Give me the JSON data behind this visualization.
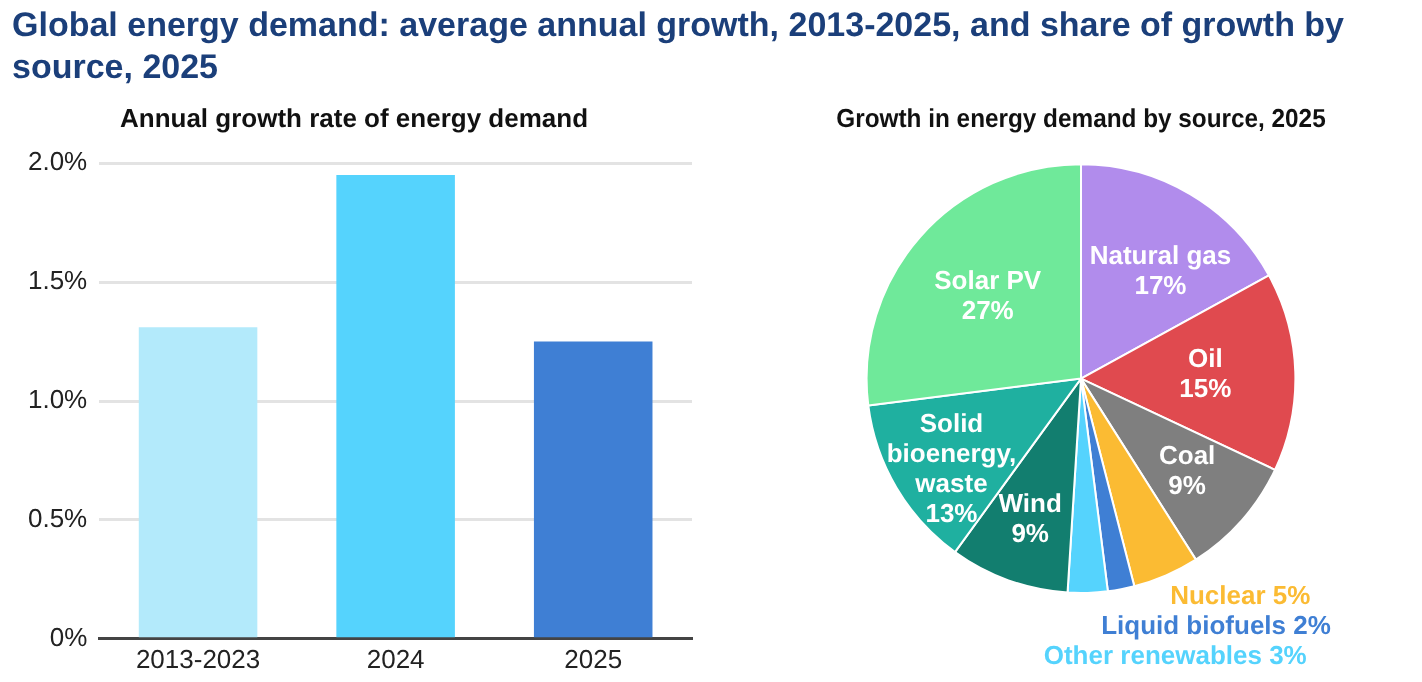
{
  "chart_data": [
    {
      "type": "bar",
      "title": "Global energy demand: average annual growth, 2013-2025, and share of growth by source, 2025",
      "subtitle": "Annual growth rate of energy demand",
      "categories": [
        "2013-2023",
        "2024",
        "2025"
      ],
      "values": [
        1.31,
        1.95,
        1.25
      ],
      "colors": [
        "#b3eafb",
        "#55d3fd",
        "#3f7fd4"
      ],
      "ylim": [
        0,
        2.0
      ],
      "yticks": [
        {
          "value": 0,
          "label": "0%"
        },
        {
          "value": 0.5,
          "label": "0.5%"
        },
        {
          "value": 1.0,
          "label": "1.0%"
        },
        {
          "value": 1.5,
          "label": "1.5%"
        },
        {
          "value": 2.0,
          "label": "2.0%"
        }
      ],
      "grid": "y",
      "legend": false
    },
    {
      "type": "pie",
      "title": "Growth in energy demand by source, 2025",
      "categories": [
        "Natural gas",
        "Oil",
        "Coal",
        "Nuclear",
        "Liquid biofuels",
        "Other renewables",
        "Wind",
        "Solid bioenergy, waste",
        "Solar PV"
      ],
      "values": [
        17,
        15,
        9,
        5,
        2,
        3,
        9,
        13,
        27
      ],
      "value_labels": [
        "17%",
        "15%",
        "9%",
        "5%",
        "2%",
        "3%",
        "9%",
        "13%",
        "27%"
      ],
      "colors": [
        "#b18cec",
        "#e04a4f",
        "#7f7f7f",
        "#fbbb33",
        "#3f7fd4",
        "#55d3fd",
        "#127e6f",
        "#1fb0a0",
        "#6fe99a"
      ],
      "legend": false
    }
  ]
}
